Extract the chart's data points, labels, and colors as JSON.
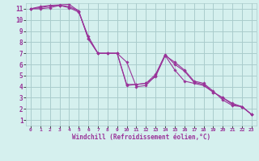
{
  "background_color": "#d5f0ee",
  "grid_color": "#aacccc",
  "line_color": "#993399",
  "marker_color": "#993399",
  "xlabel": "Windchill (Refroidissement éolien,°C)",
  "xlim": [
    -0.5,
    23.5
  ],
  "ylim": [
    0.5,
    11.5
  ],
  "xtick_labels": [
    "0",
    "1",
    "2",
    "3",
    "4",
    "5",
    "6",
    "7",
    "8",
    "9",
    "10",
    "11",
    "12",
    "13",
    "14",
    "15",
    "16",
    "17",
    "18",
    "19",
    "20",
    "21",
    "22",
    "23"
  ],
  "yticks": [
    1,
    2,
    3,
    4,
    5,
    6,
    7,
    8,
    9,
    10,
    11
  ],
  "series": [
    [
      11.0,
      11.2,
      11.3,
      11.35,
      11.4,
      10.8,
      8.3,
      7.0,
      7.0,
      7.0,
      6.2,
      4.0,
      4.1,
      5.0,
      6.8,
      5.5,
      4.5,
      4.3,
      4.1,
      3.5,
      3.0,
      2.5,
      2.2,
      1.5
    ],
    [
      11.0,
      11.1,
      11.25,
      11.3,
      11.1,
      10.7,
      8.5,
      7.0,
      7.0,
      7.0,
      4.2,
      4.2,
      4.3,
      4.9,
      6.8,
      6.2,
      5.5,
      4.5,
      4.3,
      3.6,
      2.8,
      2.3,
      2.2,
      1.5
    ],
    [
      11.0,
      11.0,
      11.1,
      11.3,
      11.2,
      10.8,
      8.3,
      7.0,
      7.0,
      7.0,
      4.1,
      4.2,
      4.3,
      5.1,
      6.9,
      6.0,
      5.4,
      4.4,
      4.2,
      3.5,
      3.0,
      2.4,
      2.2,
      1.5
    ]
  ]
}
